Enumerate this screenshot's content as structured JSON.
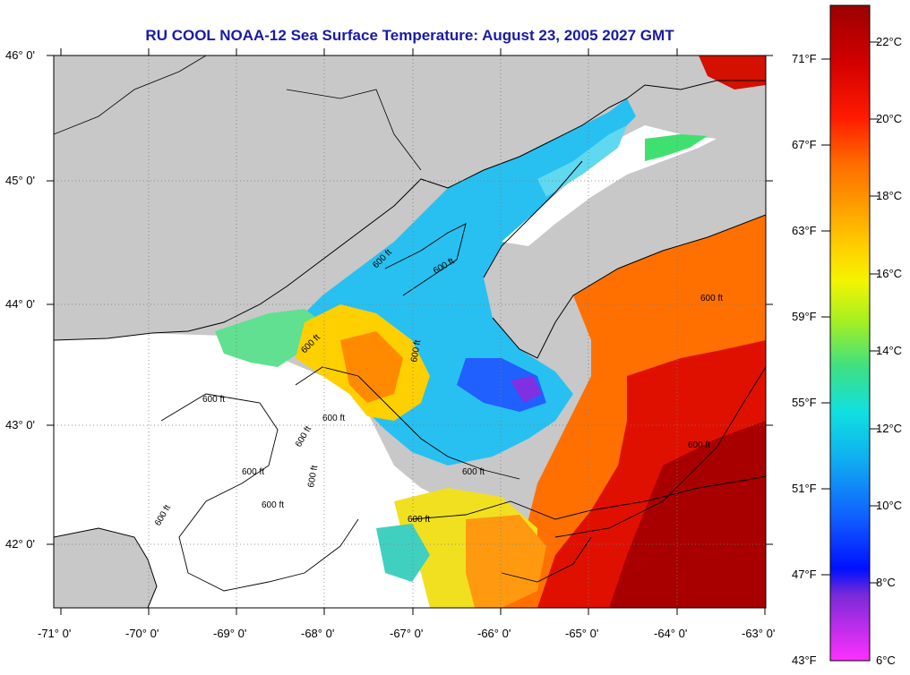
{
  "title": "RU COOL  NOAA-12  Sea Surface Temperature:  August 23, 2005 2027 GMT",
  "latitude_labels": [
    "46° 0'",
    "45° 0'",
    "44° 0'",
    "43° 0'",
    "42° 0'"
  ],
  "longitude_labels": [
    "-71° 0'",
    "-70° 0'",
    "-69° 0'",
    "-68° 0'",
    "-67° 0'",
    "-66° 0'",
    "-65° 0'",
    "-64° 0'",
    "-63° 0'"
  ],
  "colorbar": {
    "fahrenheit_labels": [
      "71°F",
      "67°F",
      "63°F",
      "59°F",
      "55°F",
      "51°F",
      "47°F",
      "43°F"
    ],
    "celsius_labels": [
      "22°C",
      "20°C",
      "18°C",
      "16°C",
      "14°C",
      "12°C",
      "10°C",
      "8°C",
      "6°C"
    ],
    "colors": [
      "#9c0000",
      "#d40000",
      "#ff1a00",
      "#ff6a00",
      "#ffa000",
      "#ffd000",
      "#f4f400",
      "#a8f020",
      "#40e080",
      "#10e0e0",
      "#10b0f0",
      "#1060ff",
      "#0010ff",
      "#7a2ad8",
      "#ff30ff"
    ]
  },
  "contour_labels": [
    "600 ft",
    "600 ft",
    "600 ft",
    "600 ft",
    "600 ft",
    "600 ft",
    "600 ft",
    "600 ft",
    "600 ft",
    "600 ft",
    "600 ft",
    "600 ft",
    "600 ft",
    "600 ft",
    "600 ft"
  ],
  "map_colors": {
    "land": "#c8c8c8",
    "cloud": "#ffffff",
    "coast": "#000000",
    "grid": "#7a7a7a"
  }
}
